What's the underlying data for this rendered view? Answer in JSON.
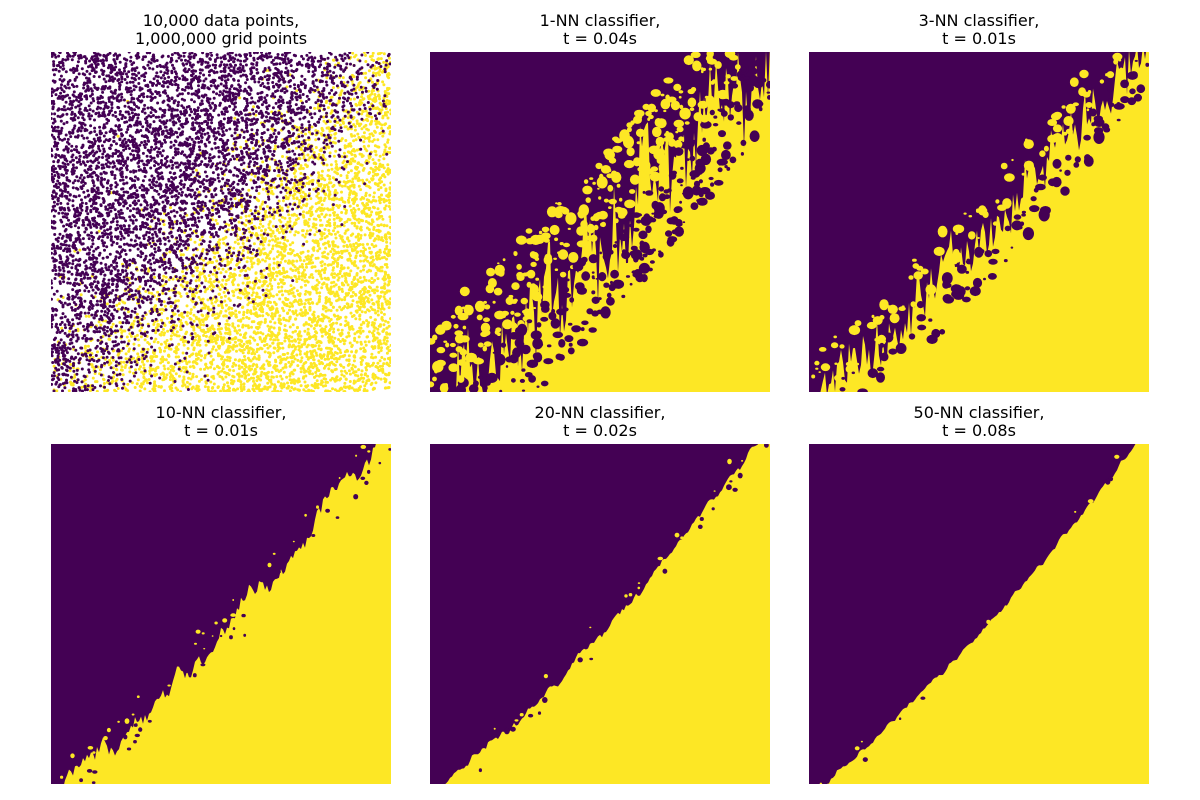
{
  "colors": {
    "class_0": "#440154",
    "class_1": "#fde725",
    "background": "#ffffff"
  },
  "chart_data": [
    {
      "type": "scatter",
      "title_lines": [
        "10,000 data points,",
        "1,000,000 grid points"
      ],
      "n_points": 10000,
      "classes": [
        0,
        1
      ],
      "xlim": [
        0,
        1
      ],
      "ylim": [
        0,
        1
      ],
      "axes": "off",
      "boundary": "noisy diagonal: class 0 (purple) upper-left, class 1 (yellow) lower-right"
    },
    {
      "type": "heatmap",
      "title_lines": [
        "1-NN classifier,",
        "t = 0.04s"
      ],
      "k": 1,
      "time_s": 0.04,
      "xlim": [
        0,
        1
      ],
      "ylim": [
        0,
        1
      ],
      "axes": "off"
    },
    {
      "type": "heatmap",
      "title_lines": [
        "3-NN classifier,",
        "t = 0.01s"
      ],
      "k": 3,
      "time_s": 0.01,
      "xlim": [
        0,
        1
      ],
      "ylim": [
        0,
        1
      ],
      "axes": "off"
    },
    {
      "type": "heatmap",
      "title_lines": [
        "10-NN classifier,",
        "t = 0.01s"
      ],
      "k": 10,
      "time_s": 0.01,
      "xlim": [
        0,
        1
      ],
      "ylim": [
        0,
        1
      ],
      "axes": "off"
    },
    {
      "type": "heatmap",
      "title_lines": [
        "20-NN classifier,",
        "t = 0.02s"
      ],
      "k": 20,
      "time_s": 0.02,
      "xlim": [
        0,
        1
      ],
      "ylim": [
        0,
        1
      ],
      "axes": "off"
    },
    {
      "type": "heatmap",
      "title_lines": [
        "50-NN classifier,",
        "t = 0.08s"
      ],
      "k": 50,
      "time_s": 0.08,
      "xlim": [
        0,
        1
      ],
      "ylim": [
        0,
        1
      ],
      "axes": "off"
    }
  ]
}
